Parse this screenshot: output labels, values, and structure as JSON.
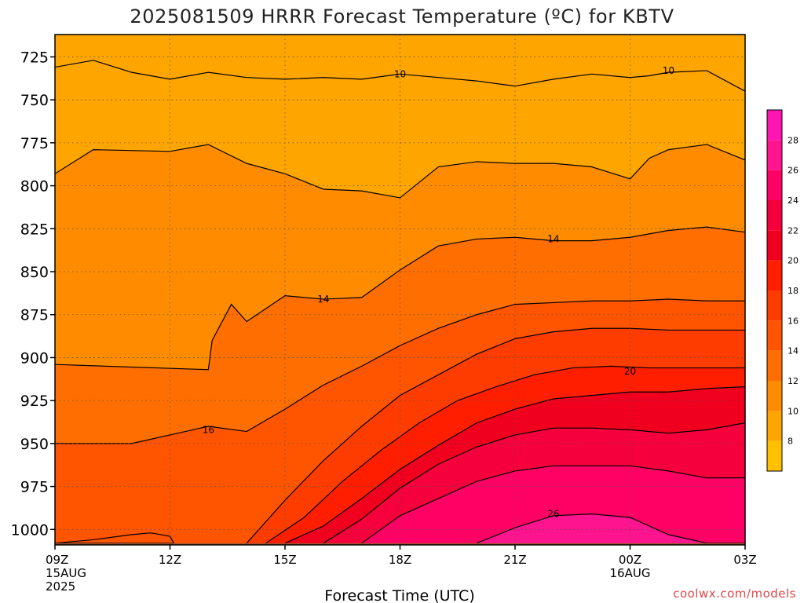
{
  "title": "2025081509 HRRR Forecast Temperature (ºC) for KBTV",
  "credit": "coolwx.com/models",
  "colors": {
    "ground": "#a0522d",
    "contour_line": "#000000",
    "grid": "#555555"
  },
  "chart_data": {
    "type": "heatmap",
    "title": "2025081509 HRRR Forecast Temperature (ºC) for KBTV",
    "xlabel": "Forecast Time (UTC)",
    "ylabel": "",
    "x_hours": [
      0,
      3,
      6,
      9,
      12,
      15,
      18
    ],
    "x_tick_labels": [
      {
        "line1": "09Z",
        "line2": "15AUG",
        "line3": "2025"
      },
      {
        "line1": "12Z",
        "line2": "",
        "line3": ""
      },
      {
        "line1": "15Z",
        "line2": "",
        "line3": ""
      },
      {
        "line1": "18Z",
        "line2": "",
        "line3": ""
      },
      {
        "line1": "21Z",
        "line2": "",
        "line3": ""
      },
      {
        "line1": "00Z",
        "line2": "16AUG",
        "line3": ""
      },
      {
        "line1": "03Z",
        "line2": "",
        "line3": ""
      }
    ],
    "xlim": [
      0,
      18
    ],
    "y_pressure_hPa": [
      725,
      750,
      775,
      800,
      825,
      850,
      875,
      900,
      925,
      950,
      975,
      1000
    ],
    "ylim": [
      712,
      1009
    ],
    "surface_pressure_hPa": 1008,
    "grid": true,
    "colorbar": {
      "levels": [
        6,
        8,
        10,
        12,
        14,
        16,
        18,
        20,
        22,
        24,
        26,
        28,
        30
      ],
      "tick_labels": [
        "8",
        "10",
        "12",
        "14",
        "16",
        "18",
        "20",
        "22",
        "24",
        "26",
        "28"
      ],
      "colors": [
        "#ffc000",
        "#ffa500",
        "#ff8c00",
        "#ff6e00",
        "#ff5400",
        "#ff3c00",
        "#ff1e00",
        "#f0001e",
        "#f5003c",
        "#ff0064",
        "#ff1490",
        "#ff14b4"
      ]
    },
    "contour_levels_labeled": [
      {
        "value": "10",
        "x_hour": 9.0,
        "p": 735
      },
      {
        "value": "10",
        "x_hour": 16.0,
        "p": 733
      },
      {
        "value": "14",
        "x_hour": 13.0,
        "p": 831
      },
      {
        "value": "14",
        "x_hour": 7.0,
        "p": 866
      },
      {
        "value": "20",
        "x_hour": 15.0,
        "p": 908
      },
      {
        "value": "16",
        "x_hour": 4.0,
        "p": 942
      },
      {
        "value": "26",
        "x_hour": 13.0,
        "p": 991
      }
    ],
    "filled_bands": [
      {
        "level": "10-12",
        "upper_hours": [
          0,
          1,
          3,
          4,
          5,
          6,
          7,
          8,
          9,
          10,
          11,
          12,
          13,
          14,
          15,
          15.5,
          16,
          17,
          18
        ],
        "upper_p": [
          793,
          779,
          780,
          776,
          787,
          793,
          802,
          803,
          807,
          789,
          786,
          787,
          787,
          789,
          796,
          784,
          779,
          776,
          785
        ]
      },
      {
        "level": "12-14",
        "upper_hours": [
          0,
          4,
          4.1,
          4.6,
          5,
          6,
          7,
          8,
          9,
          10,
          11,
          12,
          13,
          14,
          15,
          16,
          17,
          18
        ],
        "upper_p": [
          904,
          907,
          890,
          869,
          879,
          864,
          866,
          865,
          849,
          835,
          831,
          830,
          832,
          832,
          830,
          826,
          824,
          827
        ]
      },
      {
        "level": "14-16",
        "upper_hours": [
          0,
          2,
          4,
          5,
          6,
          7,
          8,
          9,
          10,
          11,
          12,
          13,
          14,
          15,
          16,
          17,
          18
        ],
        "upper_p": [
          950,
          950,
          940,
          943,
          930,
          916,
          905,
          893,
          883,
          875,
          869,
          868,
          867,
          867,
          866,
          867,
          867
        ]
      },
      {
        "level": "16-18",
        "upper_hours": [
          5,
          6,
          7,
          8,
          9,
          10,
          11,
          12,
          13,
          14,
          15,
          16,
          17,
          18
        ],
        "upper_p": [
          1008,
          983,
          960,
          940,
          922,
          910,
          898,
          889,
          885,
          883,
          883,
          884,
          884,
          884
        ]
      },
      {
        "level": "18-20",
        "upper_hours": [
          5.5,
          6.5,
          7.5,
          8.5,
          9.5,
          10.5,
          11.5,
          12.5,
          13.5,
          14.5,
          15.5,
          16.5,
          17.5,
          18
        ],
        "upper_p": [
          1008,
          993,
          972,
          954,
          938,
          925,
          917,
          910,
          906,
          905,
          906,
          906,
          906,
          906
        ]
      },
      {
        "level": "20-22",
        "upper_hours": [
          6,
          7,
          8,
          9,
          10,
          11,
          12,
          13,
          14,
          15,
          16,
          17,
          18
        ],
        "upper_p": [
          1008,
          998,
          982,
          965,
          951,
          938,
          930,
          924,
          922,
          920,
          920,
          918,
          917
        ]
      },
      {
        "level": "22-24",
        "upper_hours": [
          7,
          8,
          9,
          10,
          11,
          12,
          13,
          14,
          15,
          16,
          17,
          18
        ],
        "upper_p": [
          1008,
          994,
          976,
          962,
          952,
          945,
          941,
          941,
          942,
          944,
          942,
          938
        ]
      },
      {
        "level": "24-26",
        "upper_hours": [
          8,
          9,
          10,
          11,
          12,
          13,
          14,
          15,
          16,
          17,
          18
        ],
        "upper_p": [
          1008,
          992,
          982,
          972,
          966,
          963,
          963,
          963,
          966,
          970,
          970
        ]
      },
      {
        "level": "26-28",
        "upper_hours": [
          11,
          12,
          13,
          14,
          15,
          15.5,
          16,
          17,
          18
        ],
        "upper_p": [
          1008,
          999,
          992,
          991,
          993,
          998,
          1003,
          1008,
          1008
        ]
      }
    ],
    "extra_contours": [
      {
        "level": "8-10",
        "hours": [
          0,
          1,
          2,
          3,
          4,
          5,
          6,
          7,
          8,
          9,
          10,
          11,
          12,
          13,
          14,
          15,
          15.5,
          16,
          17,
          18
        ],
        "p": [
          731,
          727,
          734,
          738,
          734,
          737,
          738,
          737,
          738,
          735,
          737,
          739,
          742,
          738,
          735,
          737,
          736,
          734,
          733,
          745
        ]
      },
      {
        "level": "near-surface",
        "hours": [
          0,
          1,
          2,
          2.5,
          3.0,
          3.1,
          3,
          2.5,
          2,
          1.5,
          1,
          0.5,
          0
        ],
        "p": [
          1008,
          1006,
          1003,
          1002,
          1004,
          1008,
          1008,
          1008,
          1008,
          1008,
          1008,
          1008,
          1008
        ]
      }
    ]
  }
}
